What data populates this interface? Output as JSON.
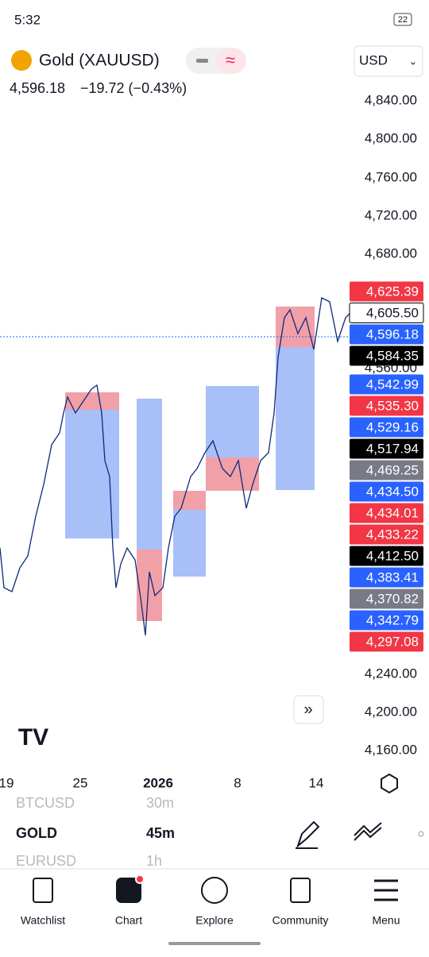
{
  "status": {
    "time": "5:32",
    "battery": "22"
  },
  "header": {
    "symbol": "Gold (XAUUSD)",
    "price": "4,596.18",
    "change": "−19.72 (−0.43%)",
    "currency": "USD"
  },
  "price_axis": [
    "4,840.00",
    "4,800.00",
    "4,760.00",
    "4,720.00",
    "4,680.00",
    "4,560.00",
    "4,240.00",
    "4,200.00",
    "4,160.00"
  ],
  "price_labels": [
    {
      "text": "4,625.39",
      "color": "#f23645"
    },
    {
      "text": "4,605.50",
      "color": "#ffffff"
    },
    {
      "text": "4,596.18",
      "color": "#2962ff"
    },
    {
      "text": "4,584.35",
      "color": "#000000"
    },
    {
      "text": "4,542.99",
      "color": "#2962ff"
    },
    {
      "text": "4,535.30",
      "color": "#f23645"
    },
    {
      "text": "4,529.16",
      "color": "#2962ff"
    },
    {
      "text": "4,517.94",
      "color": "#000000"
    },
    {
      "text": "4,469.25",
      "color": "#787b86"
    },
    {
      "text": "4,434.50",
      "color": "#2962ff"
    },
    {
      "text": "4,434.01",
      "color": "#f23645"
    },
    {
      "text": "4,433.22",
      "color": "#f23645"
    },
    {
      "text": "4,412.50",
      "color": "#000000"
    },
    {
      "text": "4,383.41",
      "color": "#2962ff"
    },
    {
      "text": "4,370.82",
      "color": "#787b86"
    },
    {
      "text": "4,342.79",
      "color": "#2962ff"
    },
    {
      "text": "4,297.08",
      "color": "#f23645"
    }
  ],
  "time_axis": [
    "19",
    "25",
    "2026",
    "8",
    "14"
  ],
  "watchlist": [
    {
      "symbol": "BTCUSD",
      "interval": "30m"
    },
    {
      "symbol": "GOLD",
      "interval": "45m"
    },
    {
      "symbol": "EURUSD",
      "interval": "1h"
    }
  ],
  "nav": [
    "Watchlist",
    "Chart",
    "Explore",
    "Community",
    "Menu"
  ]
}
